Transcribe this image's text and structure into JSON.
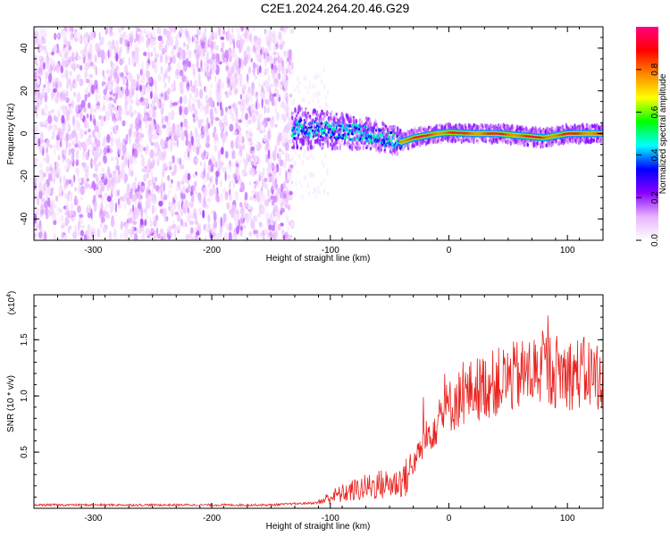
{
  "title": "C2E1.2024.264.20.46.G29",
  "chart_data": [
    {
      "type": "heatmap",
      "description_kind": "spectrogram",
      "xlabel": "Height of straight line (km)",
      "ylabel": "Frequency (Hz)",
      "xlim": [
        -350,
        130
      ],
      "ylim": [
        -50,
        50
      ],
      "x_ticks": [
        -300,
        -200,
        -100,
        0,
        100
      ],
      "y_ticks": [
        -40,
        -20,
        0,
        20,
        40
      ],
      "grid": false,
      "colorbar": {
        "label": "Normalized spectral amplitude",
        "range": [
          0.0,
          1.0
        ],
        "ticks": [
          0.0,
          0.2,
          0.4,
          0.6,
          0.8
        ],
        "tick_labels": [
          "0.0",
          "0.2",
          "0.4",
          "0.6",
          "0.8"
        ],
        "colors": [
          "#ffffff",
          "#e8b4ff",
          "#8800ff",
          "#0000ff",
          "#00ffff",
          "#00ff00",
          "#ffff00",
          "#ff8800",
          "#ff0000",
          "#ff0080"
        ]
      },
      "regions": [
        {
          "x": [
            -350,
            -132
          ],
          "freq": [
            -50,
            50
          ],
          "amplitude": [
            0.0,
            0.2
          ],
          "note": "broadband noise"
        },
        {
          "x": [
            -132,
            -40
          ],
          "freq": [
            -10,
            10
          ],
          "amplitude": [
            0.2,
            0.5
          ]
        },
        {
          "x": [
            -40,
            130
          ],
          "freq": [
            -2,
            2
          ],
          "amplitude": [
            0.5,
            1.0
          ]
        }
      ],
      "tone_track": [
        {
          "x": -130,
          "f": 3
        },
        {
          "x": -110,
          "f": 2
        },
        {
          "x": -90,
          "f": 1
        },
        {
          "x": -70,
          "f": 0
        },
        {
          "x": -55,
          "f": -2
        },
        {
          "x": -40,
          "f": -4
        },
        {
          "x": -30,
          "f": -2
        },
        {
          "x": -20,
          "f": -1
        },
        {
          "x": -10,
          "f": 0
        },
        {
          "x": 0,
          "f": 0.5
        },
        {
          "x": 20,
          "f": 0
        },
        {
          "x": 40,
          "f": 0
        },
        {
          "x": 60,
          "f": -1
        },
        {
          "x": 80,
          "f": -2
        },
        {
          "x": 90,
          "f": -1
        },
        {
          "x": 100,
          "f": 0
        },
        {
          "x": 130,
          "f": 0
        }
      ]
    },
    {
      "type": "line",
      "xlabel": "Height of straight line (km)",
      "ylabel": "SNR (10 * v/v)",
      "y_multiplier": "(x10",
      "y_multiplier_exp": "4",
      "xlim": [
        -350,
        130
      ],
      "ylim": [
        0,
        19000
      ],
      "x_ticks": [
        -300,
        -200,
        -100,
        0,
        100
      ],
      "y_ticks": [
        5000,
        10000,
        15000
      ],
      "y_tick_labels": [
        "0.5",
        "1.0",
        "1.5"
      ],
      "grid": false,
      "line_color": "#e8231f",
      "series": [
        {
          "values_x": [
            -350,
            -250,
            -150,
            -110,
            -100,
            -80,
            -60,
            -45,
            -35,
            -25,
            -15,
            -5,
            5,
            20,
            40,
            60,
            80,
            100,
            115,
            130
          ],
          "values_y": [
            300,
            300,
            300,
            500,
            1000,
            1600,
            2100,
            2200,
            2800,
            5000,
            7000,
            8500,
            9500,
            10500,
            11200,
            11800,
            12500,
            12000,
            12000,
            11800
          ]
        }
      ]
    }
  ]
}
